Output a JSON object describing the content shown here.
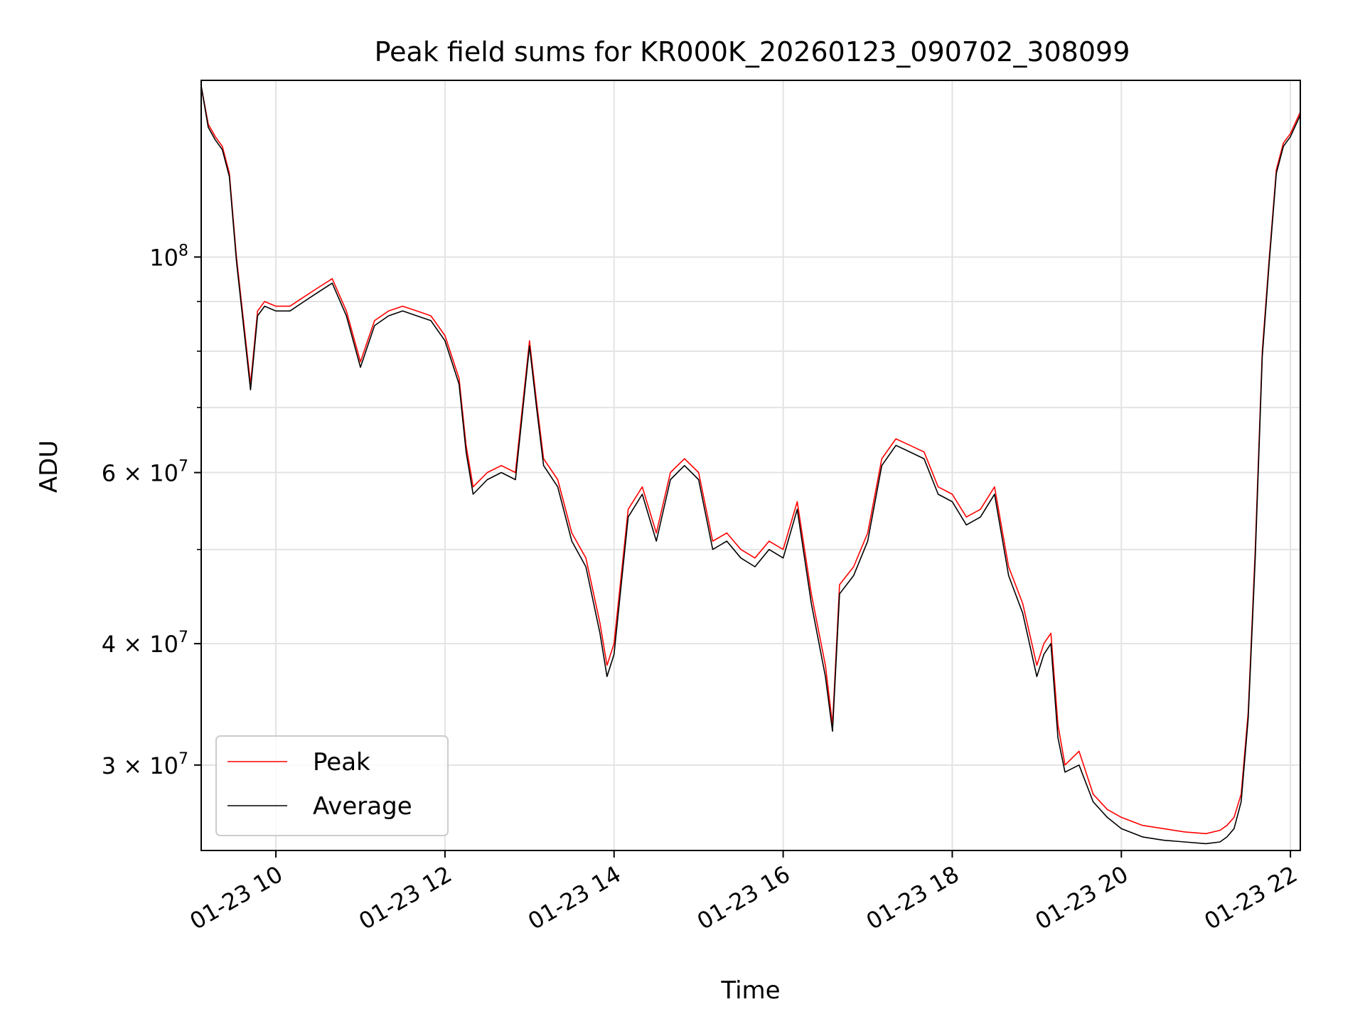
{
  "chart_data": {
    "type": "line",
    "title": "Peak field sums for KR000K_20260123_090702_308099",
    "xlabel": "Time",
    "ylabel": "ADU",
    "yscale": "log",
    "grid": true,
    "legend_position": "lower-left",
    "date": "2026-01-23",
    "xlim": [
      "09:07",
      "22:07"
    ],
    "ylim": [
      24500000,
      152000000
    ],
    "x_ticks": [
      {
        "time": "10:00",
        "label": "01-23 10"
      },
      {
        "time": "12:00",
        "label": "01-23 12"
      },
      {
        "time": "14:00",
        "label": "01-23 14"
      },
      {
        "time": "16:00",
        "label": "01-23 16"
      },
      {
        "time": "18:00",
        "label": "01-23 18"
      },
      {
        "time": "20:00",
        "label": "01-23 20"
      },
      {
        "time": "22:00",
        "label": "01-23 22"
      }
    ],
    "y_major_ticks": [
      {
        "value": 100000000,
        "base": "10",
        "exp": "8"
      },
      {
        "value": 60000000,
        "base": "6 × 10",
        "exp": "7"
      },
      {
        "value": 40000000,
        "base": "4 × 10",
        "exp": "7"
      },
      {
        "value": 30000000,
        "base": "3 × 10",
        "exp": "7"
      }
    ],
    "y_minor_ticks": [
      90000000,
      80000000,
      70000000,
      50000000
    ],
    "x": [
      "09:07",
      "09:12",
      "09:17",
      "09:22",
      "09:27",
      "09:32",
      "09:37",
      "09:42",
      "09:47",
      "09:52",
      "10:00",
      "10:10",
      "10:20",
      "10:30",
      "10:40",
      "10:50",
      "11:00",
      "11:10",
      "11:20",
      "11:30",
      "11:40",
      "11:50",
      "12:00",
      "12:10",
      "12:15",
      "12:20",
      "12:30",
      "12:40",
      "12:50",
      "13:00",
      "13:05",
      "13:10",
      "13:20",
      "13:30",
      "13:40",
      "13:50",
      "13:55",
      "14:00",
      "14:10",
      "14:20",
      "14:30",
      "14:40",
      "14:50",
      "15:00",
      "15:10",
      "15:20",
      "15:30",
      "15:40",
      "15:50",
      "16:00",
      "16:10",
      "16:20",
      "16:30",
      "16:35",
      "16:40",
      "16:50",
      "17:00",
      "17:10",
      "17:20",
      "17:30",
      "17:40",
      "17:50",
      "18:00",
      "18:10",
      "18:20",
      "18:30",
      "18:40",
      "18:50",
      "19:00",
      "19:05",
      "19:10",
      "19:15",
      "19:20",
      "19:30",
      "19:40",
      "19:50",
      "20:00",
      "20:15",
      "20:30",
      "20:45",
      "21:00",
      "21:10",
      "21:15",
      "21:20",
      "21:25",
      "21:30",
      "21:35",
      "21:40",
      "21:45",
      "21:50",
      "21:55",
      "22:00",
      "22:07"
    ],
    "series": [
      {
        "name": "Peak",
        "color": "#ff0000",
        "values": [
          150000000,
          137000000,
          133000000,
          130000000,
          122000000,
          100000000,
          86000000,
          74000000,
          88000000,
          90000000,
          89000000,
          89000000,
          91000000,
          93000000,
          95000000,
          88000000,
          78000000,
          86000000,
          88000000,
          89000000,
          88000000,
          87000000,
          83000000,
          75000000,
          64000000,
          58000000,
          60000000,
          61000000,
          60000000,
          82000000,
          71000000,
          62000000,
          59000000,
          52000000,
          49000000,
          42000000,
          38000000,
          40000000,
          55000000,
          58000000,
          52000000,
          60000000,
          62000000,
          60000000,
          51000000,
          52000000,
          50000000,
          49000000,
          51000000,
          50000000,
          56000000,
          45000000,
          38000000,
          33000000,
          46000000,
          48000000,
          52000000,
          62000000,
          65000000,
          64000000,
          63000000,
          58000000,
          57000000,
          54000000,
          55000000,
          58000000,
          48000000,
          44000000,
          38000000,
          40000000,
          41000000,
          33000000,
          30000000,
          31000000,
          28000000,
          27000000,
          26500000,
          26000000,
          25800000,
          25600000,
          25500000,
          25700000,
          26000000,
          26500000,
          28000000,
          34000000,
          50000000,
          80000000,
          100000000,
          123000000,
          131000000,
          134000000,
          141000000
        ]
      },
      {
        "name": "Average",
        "color": "#000000",
        "values": [
          150000000,
          136000000,
          132000000,
          129000000,
          121000000,
          99000000,
          85000000,
          73000000,
          87000000,
          89000000,
          88000000,
          88000000,
          90000000,
          92000000,
          94000000,
          87000000,
          77000000,
          85000000,
          87000000,
          88000000,
          87000000,
          86000000,
          82000000,
          74000000,
          63000000,
          57000000,
          59000000,
          60000000,
          59000000,
          81000000,
          70000000,
          61000000,
          58000000,
          51000000,
          48000000,
          41000000,
          37000000,
          39000000,
          54000000,
          57000000,
          51000000,
          59000000,
          61000000,
          59000000,
          50000000,
          51000000,
          49000000,
          48000000,
          50000000,
          49000000,
          55000000,
          44000000,
          37000000,
          32500000,
          45000000,
          47000000,
          51000000,
          61000000,
          64000000,
          63000000,
          62000000,
          57000000,
          56000000,
          53000000,
          54000000,
          57000000,
          47000000,
          43000000,
          37000000,
          39000000,
          40000000,
          32000000,
          29500000,
          30000000,
          27500000,
          26500000,
          25800000,
          25300000,
          25100000,
          25000000,
          24900000,
          25000000,
          25300000,
          25800000,
          27500000,
          33500000,
          49000000,
          79000000,
          99000000,
          122000000,
          130000000,
          133000000,
          140000000
        ]
      }
    ]
  }
}
